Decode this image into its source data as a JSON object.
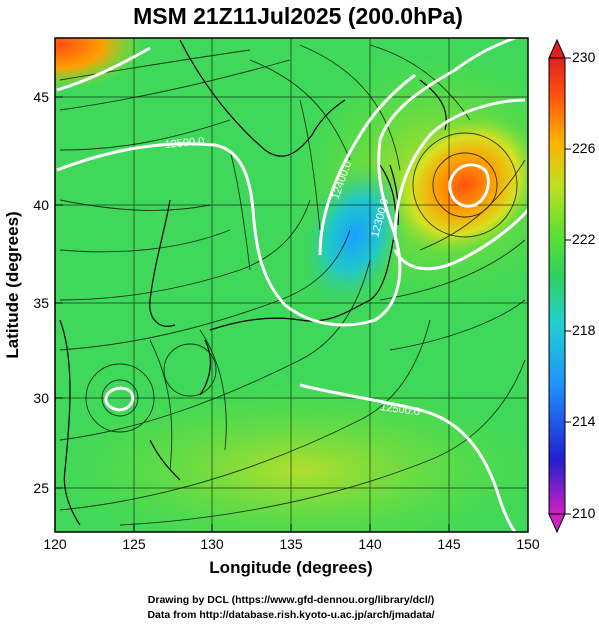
{
  "title": "MSM 21Z11Jul2025 (200.0hPa)",
  "axes": {
    "xlabel": "Longitude (degrees)",
    "ylabel": "Latitude  (degrees)",
    "x_ticks": [
      "120",
      "125",
      "130",
      "135",
      "140",
      "145",
      "150"
    ],
    "y_ticks": [
      "25",
      "30",
      "35",
      "40",
      "45"
    ],
    "x_range": [
      120,
      150
    ],
    "y_range": [
      22.4,
      47.6
    ]
  },
  "colorbar": {
    "min": 210,
    "max": 230,
    "tick_labels": [
      "230",
      "226",
      "222",
      "218",
      "214",
      "210"
    ],
    "colors": [
      "#d020c0",
      "#2020d0",
      "#2090ff",
      "#20d0d0",
      "#30d060",
      "#60e030",
      "#c0e020",
      "#ffb000",
      "#ff5010",
      "#e02020"
    ]
  },
  "contours": {
    "labels": [
      "12500.0",
      "12400.0",
      "12300.0",
      "12500.0"
    ],
    "color": "#ffffff"
  },
  "footer": {
    "line1": "Drawing by DCL (https://www.gfd-dennou.org/library/dcl/)",
    "line2": "Data from http://database.rish.kyoto-u.ac.jp/arch/jmadata/"
  }
}
